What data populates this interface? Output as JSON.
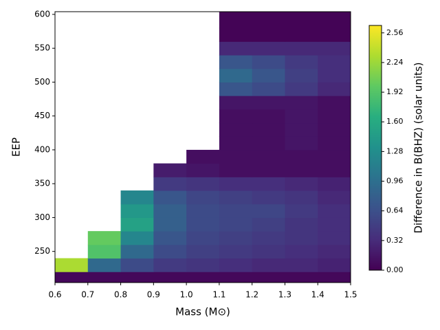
{
  "chart_data": {
    "type": "contour",
    "xlabel": "Mass (M⊙)",
    "ylabel": "EEP",
    "colorbar_label": "Difference in B(BHZ) (solar units)",
    "colormap": "viridis",
    "xlim": [
      0.6,
      1.5
    ],
    "xticks": [
      0.6,
      0.7,
      0.8,
      0.9,
      {
        "value": 1.0,
        "label": "1.0"
      },
      1.1,
      1.2,
      1.3,
      1.4,
      1.5
    ],
    "ylim": [
      204,
      604
    ],
    "yticks": [
      250,
      300,
      350,
      400,
      450,
      500,
      550,
      600
    ],
    "clim": [
      0,
      2.64
    ],
    "cticks": [
      {
        "value": 0,
        "label": "0.00"
      },
      0.32,
      0.64,
      0.96,
      1.28,
      {
        "value": 1.6,
        "label": "1.60"
      },
      1.92,
      2.24,
      2.56
    ],
    "x": [
      0.65,
      0.75,
      0.85,
      0.95,
      1.05,
      1.15,
      1.25,
      1.35,
      1.45
    ],
    "y": [
      210,
      230,
      250,
      270,
      290,
      310,
      330,
      350,
      370,
      390,
      410,
      430,
      450,
      470,
      490,
      510,
      530,
      550,
      570,
      590
    ],
    "z": [
      [
        0.05,
        0.05,
        0.05,
        0.05,
        0.05,
        0.05,
        0.05,
        0.05,
        0.05
      ],
      [
        2.3,
        0.9,
        0.6,
        0.45,
        0.4,
        0.35,
        0.3,
        0.3,
        0.25
      ],
      [
        null,
        1.9,
        0.9,
        0.6,
        0.5,
        0.45,
        0.4,
        0.35,
        0.3
      ],
      [
        null,
        2.0,
        1.2,
        0.7,
        0.55,
        0.5,
        0.45,
        0.4,
        0.35
      ],
      [
        null,
        null,
        1.5,
        0.8,
        0.6,
        0.55,
        0.5,
        0.4,
        0.35
      ],
      [
        null,
        null,
        1.4,
        0.8,
        0.6,
        0.55,
        0.55,
        0.45,
        0.35
      ],
      [
        null,
        null,
        1.2,
        0.7,
        0.55,
        0.5,
        0.45,
        0.4,
        0.3
      ],
      [
        null,
        null,
        null,
        0.45,
        0.4,
        0.35,
        0.35,
        0.3,
        0.25
      ],
      [
        null,
        null,
        null,
        0.2,
        0.15,
        0.1,
        0.1,
        0.1,
        0.1
      ],
      [
        null,
        null,
        null,
        null,
        0.1,
        0.1,
        0.1,
        0.1,
        0.1
      ],
      [
        null,
        null,
        null,
        null,
        null,
        0.1,
        0.1,
        0.15,
        0.1
      ],
      [
        null,
        null,
        null,
        null,
        null,
        0.1,
        0.1,
        0.15,
        0.1
      ],
      [
        null,
        null,
        null,
        null,
        null,
        0.1,
        0.1,
        0.15,
        0.1
      ],
      [
        null,
        null,
        null,
        null,
        null,
        0.15,
        0.15,
        0.15,
        0.1
      ],
      [
        null,
        null,
        null,
        null,
        null,
        0.7,
        0.6,
        0.45,
        0.3
      ],
      [
        null,
        null,
        null,
        null,
        null,
        0.9,
        0.7,
        0.5,
        0.35
      ],
      [
        null,
        null,
        null,
        null,
        null,
        0.7,
        0.6,
        0.45,
        0.35
      ],
      [
        null,
        null,
        null,
        null,
        null,
        0.3,
        0.3,
        0.3,
        0.3
      ],
      [
        null,
        null,
        null,
        null,
        null,
        0.02,
        0.02,
        0.02,
        0.02
      ],
      [
        null,
        null,
        null,
        null,
        null,
        0.02,
        0.02,
        0.02,
        0.02
      ]
    ]
  }
}
